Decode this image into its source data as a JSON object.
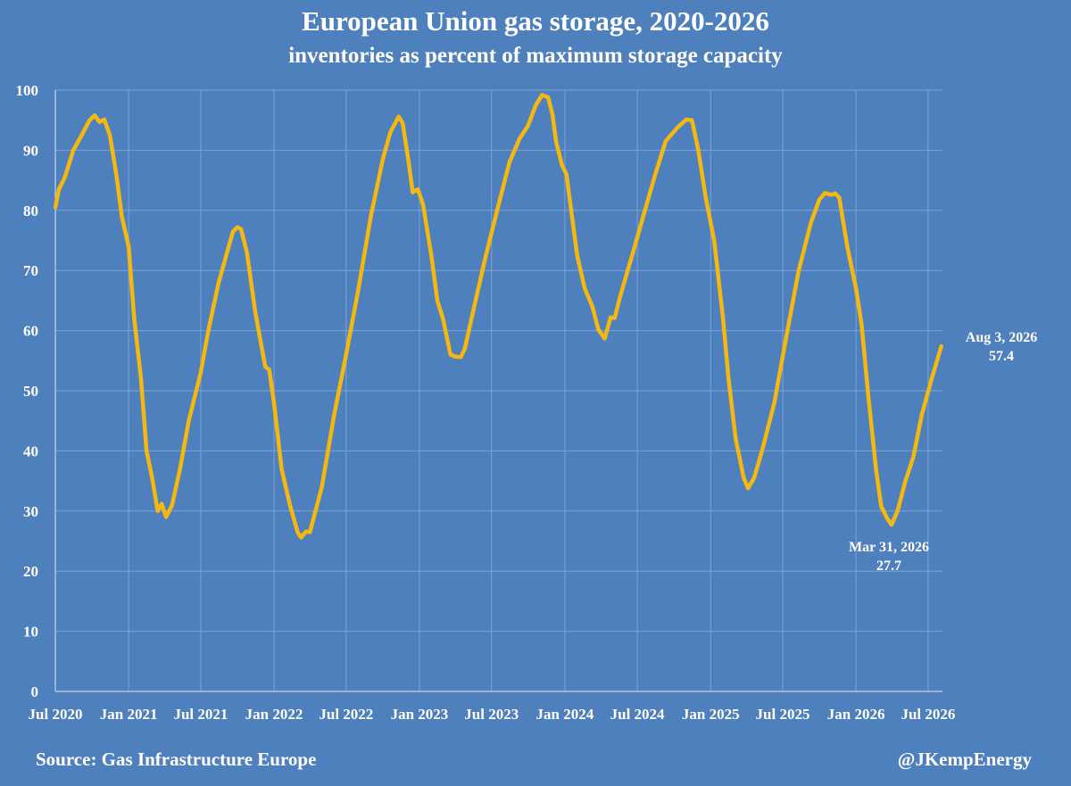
{
  "chart_data": {
    "type": "line",
    "title": "European Union gas storage, 2020-2026",
    "subtitle": "inventories as percent of maximum storage capacity",
    "xlabel": "",
    "ylabel": "",
    "ylim": [
      0,
      100
    ],
    "yticks": [
      "0",
      "10",
      "20",
      "30",
      "40",
      "50",
      "60",
      "70",
      "80",
      "90",
      "100"
    ],
    "xticks": [
      {
        "label": "Jul 2020",
        "date": "2020-07-01"
      },
      {
        "label": "Jan 2021",
        "date": "2021-01-01"
      },
      {
        "label": "Jul 2021",
        "date": "2021-07-01"
      },
      {
        "label": "Jan 2022",
        "date": "2022-01-01"
      },
      {
        "label": "Jul 2022",
        "date": "2022-07-01"
      },
      {
        "label": "Jan 2023",
        "date": "2023-01-01"
      },
      {
        "label": "Jul 2023",
        "date": "2023-07-01"
      },
      {
        "label": "Jan 2024",
        "date": "2024-01-01"
      },
      {
        "label": "Jul 2024",
        "date": "2024-07-01"
      },
      {
        "label": "Jan 2025",
        "date": "2025-01-01"
      },
      {
        "label": "Jul 2025",
        "date": "2025-07-01"
      },
      {
        "label": "Jan 2026",
        "date": "2026-01-01"
      },
      {
        "label": "Jul 2026",
        "date": "2026-07-01"
      }
    ],
    "xlim": [
      "2020-07-01",
      "2026-08-06"
    ],
    "grid": true,
    "line_color": "#f5b80f",
    "series": [
      {
        "points": [
          [
            "2020-07-01",
            80.5
          ],
          [
            "2020-07-10",
            83.5
          ],
          [
            "2020-07-25",
            85.5
          ],
          [
            "2020-08-15",
            90
          ],
          [
            "2020-09-01",
            92
          ],
          [
            "2020-09-25",
            95
          ],
          [
            "2020-10-08",
            95.8
          ],
          [
            "2020-10-20",
            94.7
          ],
          [
            "2020-11-01",
            95.1
          ],
          [
            "2020-11-15",
            92.5
          ],
          [
            "2020-12-01",
            86
          ],
          [
            "2020-12-15",
            79
          ],
          [
            "2021-01-01",
            74
          ],
          [
            "2021-01-15",
            62
          ],
          [
            "2021-02-01",
            52
          ],
          [
            "2021-02-15",
            40
          ],
          [
            "2021-03-01",
            35.5
          ],
          [
            "2021-03-15",
            30
          ],
          [
            "2021-03-25",
            31.2
          ],
          [
            "2021-04-05",
            29
          ],
          [
            "2021-04-20",
            31
          ],
          [
            "2021-05-10",
            37
          ],
          [
            "2021-06-01",
            45
          ],
          [
            "2021-07-01",
            53
          ],
          [
            "2021-07-20",
            60
          ],
          [
            "2021-08-15",
            68
          ],
          [
            "2021-09-05",
            73
          ],
          [
            "2021-09-20",
            76.5
          ],
          [
            "2021-10-01",
            77.2
          ],
          [
            "2021-10-10",
            76.9
          ],
          [
            "2021-10-25",
            73
          ],
          [
            "2021-11-15",
            63
          ],
          [
            "2021-12-10",
            54
          ],
          [
            "2021-12-20",
            53.5
          ],
          [
            "2022-01-01",
            48
          ],
          [
            "2022-01-20",
            37
          ],
          [
            "2022-02-10",
            31
          ],
          [
            "2022-03-01",
            26.5
          ],
          [
            "2022-03-10",
            25.6
          ],
          [
            "2022-03-22",
            26.6
          ],
          [
            "2022-04-01",
            26.5
          ],
          [
            "2022-04-15",
            30
          ],
          [
            "2022-05-01",
            34
          ],
          [
            "2022-06-01",
            46
          ],
          [
            "2022-07-01",
            56
          ],
          [
            "2022-08-01",
            67
          ],
          [
            "2022-09-01",
            79
          ],
          [
            "2022-10-01",
            88.5
          ],
          [
            "2022-10-20",
            93
          ],
          [
            "2022-11-10",
            95.6
          ],
          [
            "2022-11-20",
            94.5
          ],
          [
            "2022-12-05",
            88
          ],
          [
            "2022-12-15",
            83
          ],
          [
            "2022-12-28",
            83.5
          ],
          [
            "2023-01-10",
            81
          ],
          [
            "2023-02-01",
            72
          ],
          [
            "2023-02-15",
            65
          ],
          [
            "2023-03-01",
            62
          ],
          [
            "2023-03-20",
            56
          ],
          [
            "2023-04-01",
            55.7
          ],
          [
            "2023-04-15",
            55.6
          ],
          [
            "2023-04-25",
            57
          ],
          [
            "2023-05-15",
            63
          ],
          [
            "2023-06-15",
            72
          ],
          [
            "2023-07-15",
            80
          ],
          [
            "2023-08-15",
            88
          ],
          [
            "2023-09-10",
            92
          ],
          [
            "2023-09-30",
            94
          ],
          [
            "2023-10-20",
            97.5
          ],
          [
            "2023-11-05",
            99.2
          ],
          [
            "2023-11-20",
            98.8
          ],
          [
            "2023-12-01",
            96
          ],
          [
            "2023-12-10",
            91.5
          ],
          [
            "2023-12-25",
            87.5
          ],
          [
            "2024-01-05",
            86
          ],
          [
            "2024-01-15",
            81
          ],
          [
            "2024-02-01",
            72.5
          ],
          [
            "2024-02-20",
            67
          ],
          [
            "2024-03-10",
            64
          ],
          [
            "2024-03-25",
            60.2
          ],
          [
            "2024-04-10",
            58.7
          ],
          [
            "2024-04-25",
            62.2
          ],
          [
            "2024-05-05",
            62.1
          ],
          [
            "2024-05-20",
            66
          ],
          [
            "2024-06-20",
            73
          ],
          [
            "2024-07-20",
            80
          ],
          [
            "2024-08-15",
            86
          ],
          [
            "2024-09-10",
            91.5
          ],
          [
            "2024-10-10",
            93.8
          ],
          [
            "2024-11-01",
            95.1
          ],
          [
            "2024-11-15",
            95
          ],
          [
            "2024-12-01",
            90
          ],
          [
            "2024-12-20",
            82
          ],
          [
            "2025-01-10",
            75
          ],
          [
            "2025-02-01",
            62
          ],
          [
            "2025-02-15",
            52
          ],
          [
            "2025-03-05",
            42
          ],
          [
            "2025-03-25",
            35.5
          ],
          [
            "2025-04-05",
            33.8
          ],
          [
            "2025-04-20",
            35.5
          ],
          [
            "2025-05-10",
            40
          ],
          [
            "2025-06-10",
            48
          ],
          [
            "2025-07-10",
            59
          ],
          [
            "2025-08-10",
            70
          ],
          [
            "2025-09-10",
            78
          ],
          [
            "2025-10-01",
            81.8
          ],
          [
            "2025-10-15",
            82.9
          ],
          [
            "2025-10-30",
            82.6
          ],
          [
            "2025-11-10",
            82.8
          ],
          [
            "2025-11-20",
            82.1
          ],
          [
            "2025-12-10",
            74
          ],
          [
            "2026-01-01",
            67
          ],
          [
            "2026-01-15",
            61
          ],
          [
            "2026-02-01",
            49
          ],
          [
            "2026-02-20",
            37
          ],
          [
            "2026-03-05",
            30.8
          ],
          [
            "2026-03-20",
            28.8
          ],
          [
            "2026-03-31",
            27.7
          ],
          [
            "2026-04-15",
            30
          ],
          [
            "2026-05-05",
            35
          ],
          [
            "2026-05-25",
            39
          ],
          [
            "2026-06-15",
            46
          ],
          [
            "2026-07-10",
            52
          ],
          [
            "2026-08-03",
            57.4
          ]
        ]
      }
    ],
    "annotations": [
      {
        "date": "2026-08-03",
        "value": 57.4,
        "line1": "Aug 3, 2026",
        "line2": "57.4"
      },
      {
        "date": "2026-03-31",
        "value": 27.7,
        "line1": "Mar 31, 2026",
        "line2": "27.7"
      }
    ]
  },
  "footer": {
    "source": "Source: Gas Infrastructure Europe",
    "handle": "@JKempEnergy"
  }
}
